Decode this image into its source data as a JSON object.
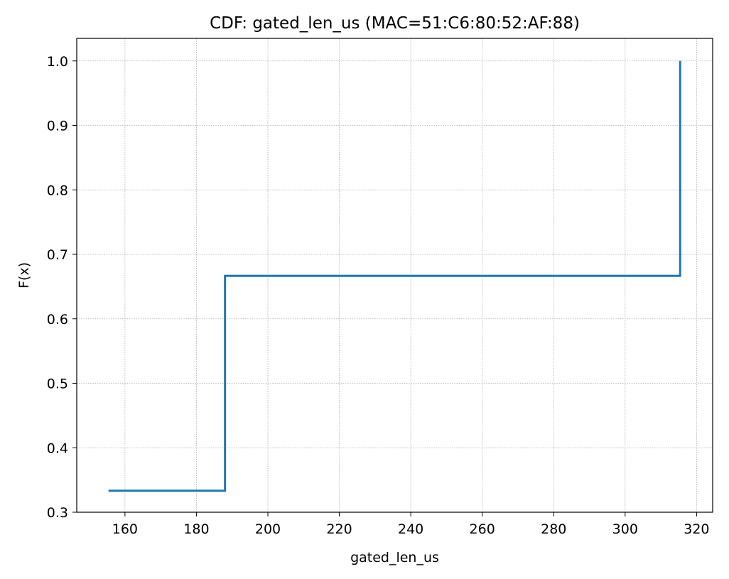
{
  "chart_data": {
    "type": "line",
    "step": true,
    "title": "CDF: gated_len_us (MAC=51:C6:80:52:AF:88)",
    "xlabel": "gated_len_us",
    "ylabel": "F(x)",
    "xlim": [
      146.5,
      324.5
    ],
    "ylim": [
      0.3,
      1.035
    ],
    "xticks": [
      160,
      180,
      200,
      220,
      240,
      260,
      280,
      300,
      320
    ],
    "yticks": [
      0.3,
      0.4,
      0.5,
      0.6,
      0.7,
      0.8,
      0.9,
      1.0
    ],
    "xtick_labels": [
      "160",
      "180",
      "200",
      "220",
      "240",
      "260",
      "280",
      "300",
      "320"
    ],
    "ytick_labels": [
      "0.3",
      "0.4",
      "0.5",
      "0.6",
      "0.7",
      "0.8",
      "0.9",
      "1.0"
    ],
    "grid": true,
    "legend": "none",
    "series": [
      {
        "x": [
          155.4,
          188.0,
          315.4
        ],
        "y": [
          0.3333,
          0.6667,
          1.0
        ],
        "color": "#1f77b4"
      }
    ]
  }
}
